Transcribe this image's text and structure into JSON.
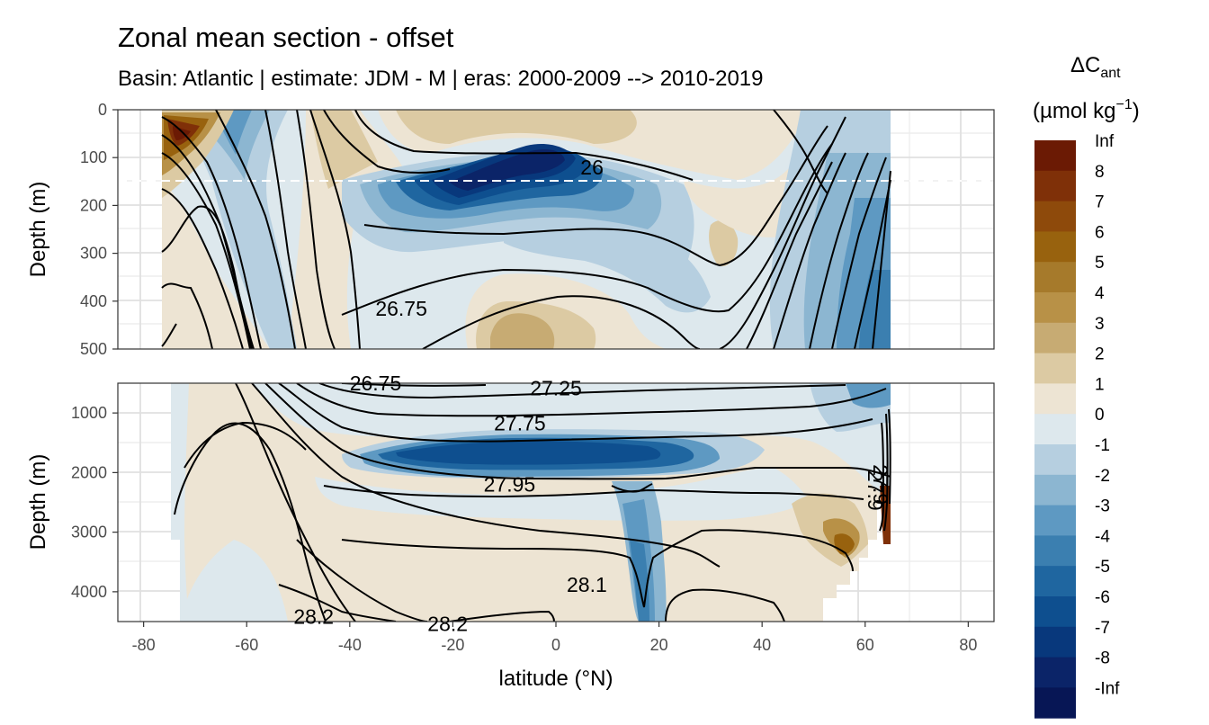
{
  "title": "Zonal mean section - offset",
  "subtitle": "Basin: Atlantic | estimate: JDM - M | eras: 2000-2009 --> 2010-2019",
  "chart_data": {
    "type": "heatmap",
    "x_axis": {
      "label": "latitude (°N)",
      "range": [
        -85,
        85
      ],
      "ticks": [
        -80,
        -60,
        -40,
        -20,
        0,
        20,
        40,
        60,
        80
      ],
      "tick_labels": [
        "-80",
        "-60",
        "-40",
        "-20",
        "0",
        "20",
        "40",
        "60",
        "80"
      ]
    },
    "panels": [
      {
        "name": "upper",
        "y_label": "Depth (m)",
        "y_range": [
          0,
          500
        ],
        "y_ticks": [
          0,
          100,
          200,
          300,
          400,
          500
        ],
        "y_tick_labels": [
          "0",
          "100",
          "200",
          "300",
          "400",
          "500"
        ],
        "reference_line_depth": 150
      },
      {
        "name": "lower",
        "y_label": "Depth (m)",
        "y_range": [
          500,
          4500
        ],
        "y_ticks": [
          1000,
          2000,
          3000,
          4000
        ],
        "y_tick_labels": [
          "1000",
          "2000",
          "3000",
          "4000"
        ]
      }
    ],
    "contour_labels": [
      {
        "panel": "upper",
        "text": "26",
        "lat": 7,
        "depth": 120
      },
      {
        "panel": "upper",
        "text": "26.75",
        "lat": -30,
        "depth": 415
      },
      {
        "panel": "lower",
        "text": "26.75",
        "lat": -35,
        "depth": 500
      },
      {
        "panel": "lower",
        "text": "27.25",
        "lat": 0,
        "depth": 580
      },
      {
        "panel": "lower",
        "text": "27.75",
        "lat": -7,
        "depth": 1170
      },
      {
        "panel": "lower",
        "text": "27.95",
        "lat": -9,
        "depth": 2200
      },
      {
        "panel": "lower",
        "text": "28.1",
        "lat": 6,
        "depth": 3880
      },
      {
        "panel": "lower",
        "text": "28.2",
        "lat": -47,
        "depth": 4420
      },
      {
        "panel": "lower",
        "text": "28.2",
        "lat": -21,
        "depth": 4540
      },
      {
        "panel": "lower",
        "text": "27.9",
        "lat": 62,
        "depth": 2300
      },
      {
        "panel": "lower",
        "text": "27.9",
        "lat": 63,
        "depth": 2200
      }
    ],
    "legend": {
      "title_main": "ΔC",
      "title_sub": "ant",
      "units_pre": "(µmol kg",
      "units_sup": "−1",
      "units_post": ")",
      "labels": [
        "Inf",
        "8",
        "7",
        "6",
        "5",
        "4",
        "3",
        "2",
        "1",
        "0",
        "-1",
        "-2",
        "-3",
        "-4",
        "-5",
        "-6",
        "-7",
        "-8",
        "-Inf"
      ],
      "colors": [
        "#6b1a04",
        "#7f3008",
        "#8e4a0b",
        "#98620e",
        "#a67a2b",
        "#b89147",
        "#c7ab73",
        "#dccaa3",
        "#ede4d3",
        "#dde8ed",
        "#b6cfe0",
        "#8cb6d1",
        "#5e99c2",
        "#3b7fb0",
        "#1f66a0",
        "#0e4f8f",
        "#08387c",
        "#0b2468",
        "#071655"
      ]
    }
  }
}
